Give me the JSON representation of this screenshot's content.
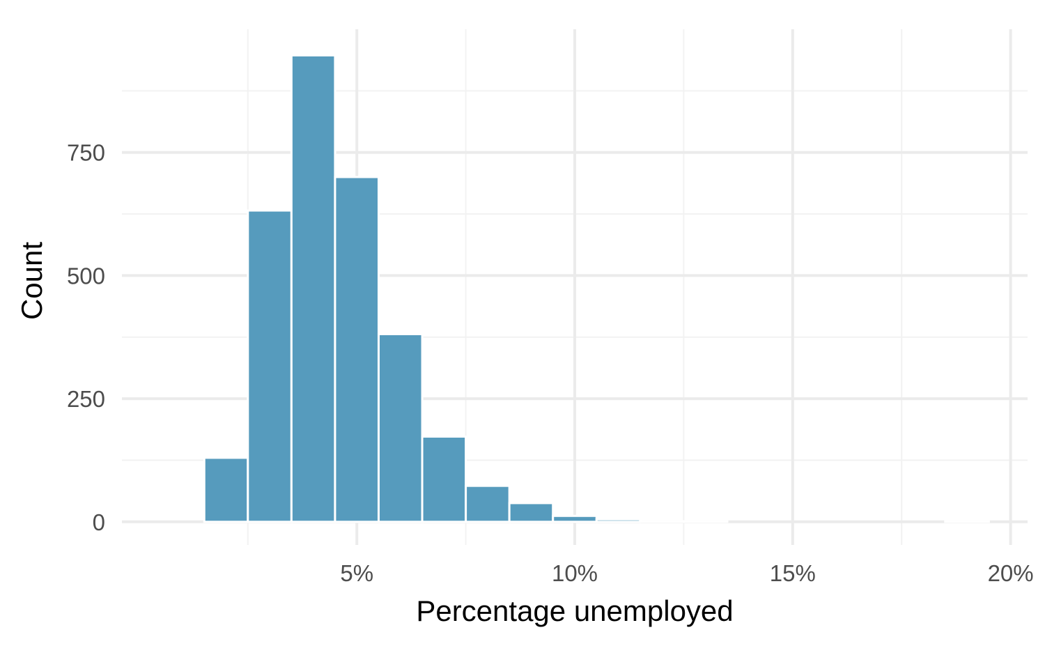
{
  "chart_data": {
    "type": "bar",
    "title": "",
    "xlabel": "Percentage unemployed",
    "ylabel": "Count",
    "bin_width": 1,
    "bins": [
      {
        "x0": 1.5,
        "x1": 2.5,
        "count": 130
      },
      {
        "x0": 2.5,
        "x1": 3.5,
        "count": 632
      },
      {
        "x0": 3.5,
        "x1": 4.5,
        "count": 947
      },
      {
        "x0": 4.5,
        "x1": 5.5,
        "count": 700
      },
      {
        "x0": 5.5,
        "x1": 6.5,
        "count": 381
      },
      {
        "x0": 6.5,
        "x1": 7.5,
        "count": 173
      },
      {
        "x0": 7.5,
        "x1": 8.5,
        "count": 73
      },
      {
        "x0": 8.5,
        "x1": 9.5,
        "count": 38
      },
      {
        "x0": 9.5,
        "x1": 10.5,
        "count": 12
      },
      {
        "x0": 10.5,
        "x1": 11.5,
        "count": 5
      },
      {
        "x0": 11.5,
        "x1": 12.5,
        "count": 1
      },
      {
        "x0": 12.5,
        "x1": 13.5,
        "count": 1
      },
      {
        "x0": 13.5,
        "x1": 14.5,
        "count": 0
      },
      {
        "x0": 14.5,
        "x1": 15.5,
        "count": 0
      },
      {
        "x0": 15.5,
        "x1": 16.5,
        "count": 0
      },
      {
        "x0": 16.5,
        "x1": 17.5,
        "count": 0
      },
      {
        "x0": 17.5,
        "x1": 18.5,
        "count": 0
      },
      {
        "x0": 18.5,
        "x1": 19.5,
        "count": 1
      }
    ],
    "xlim": [
      -0.39,
      20.39
    ],
    "ylim": [
      -47,
      1000
    ],
    "x_ticks": [
      {
        "value": 5,
        "label": "5%"
      },
      {
        "value": 10,
        "label": "10%"
      },
      {
        "value": 15,
        "label": "15%"
      },
      {
        "value": 20,
        "label": "20%"
      }
    ],
    "x_minor_ticks": [
      2.5,
      7.5,
      12.5,
      17.5
    ],
    "y_ticks": [
      {
        "value": 0,
        "label": "0"
      },
      {
        "value": 250,
        "label": "250"
      },
      {
        "value": 500,
        "label": "500"
      },
      {
        "value": 750,
        "label": "750"
      }
    ],
    "y_minor_ticks": [
      125,
      375,
      625,
      875
    ],
    "grid": true,
    "legend": "none",
    "colors": {
      "bar_fill": "#569bbd",
      "bar_outline": "#ffffff",
      "grid_major": "#ebebeb",
      "grid_minor": "#f2f2f2",
      "tick_text": "#4d4d4d",
      "title_text": "#000000"
    }
  }
}
